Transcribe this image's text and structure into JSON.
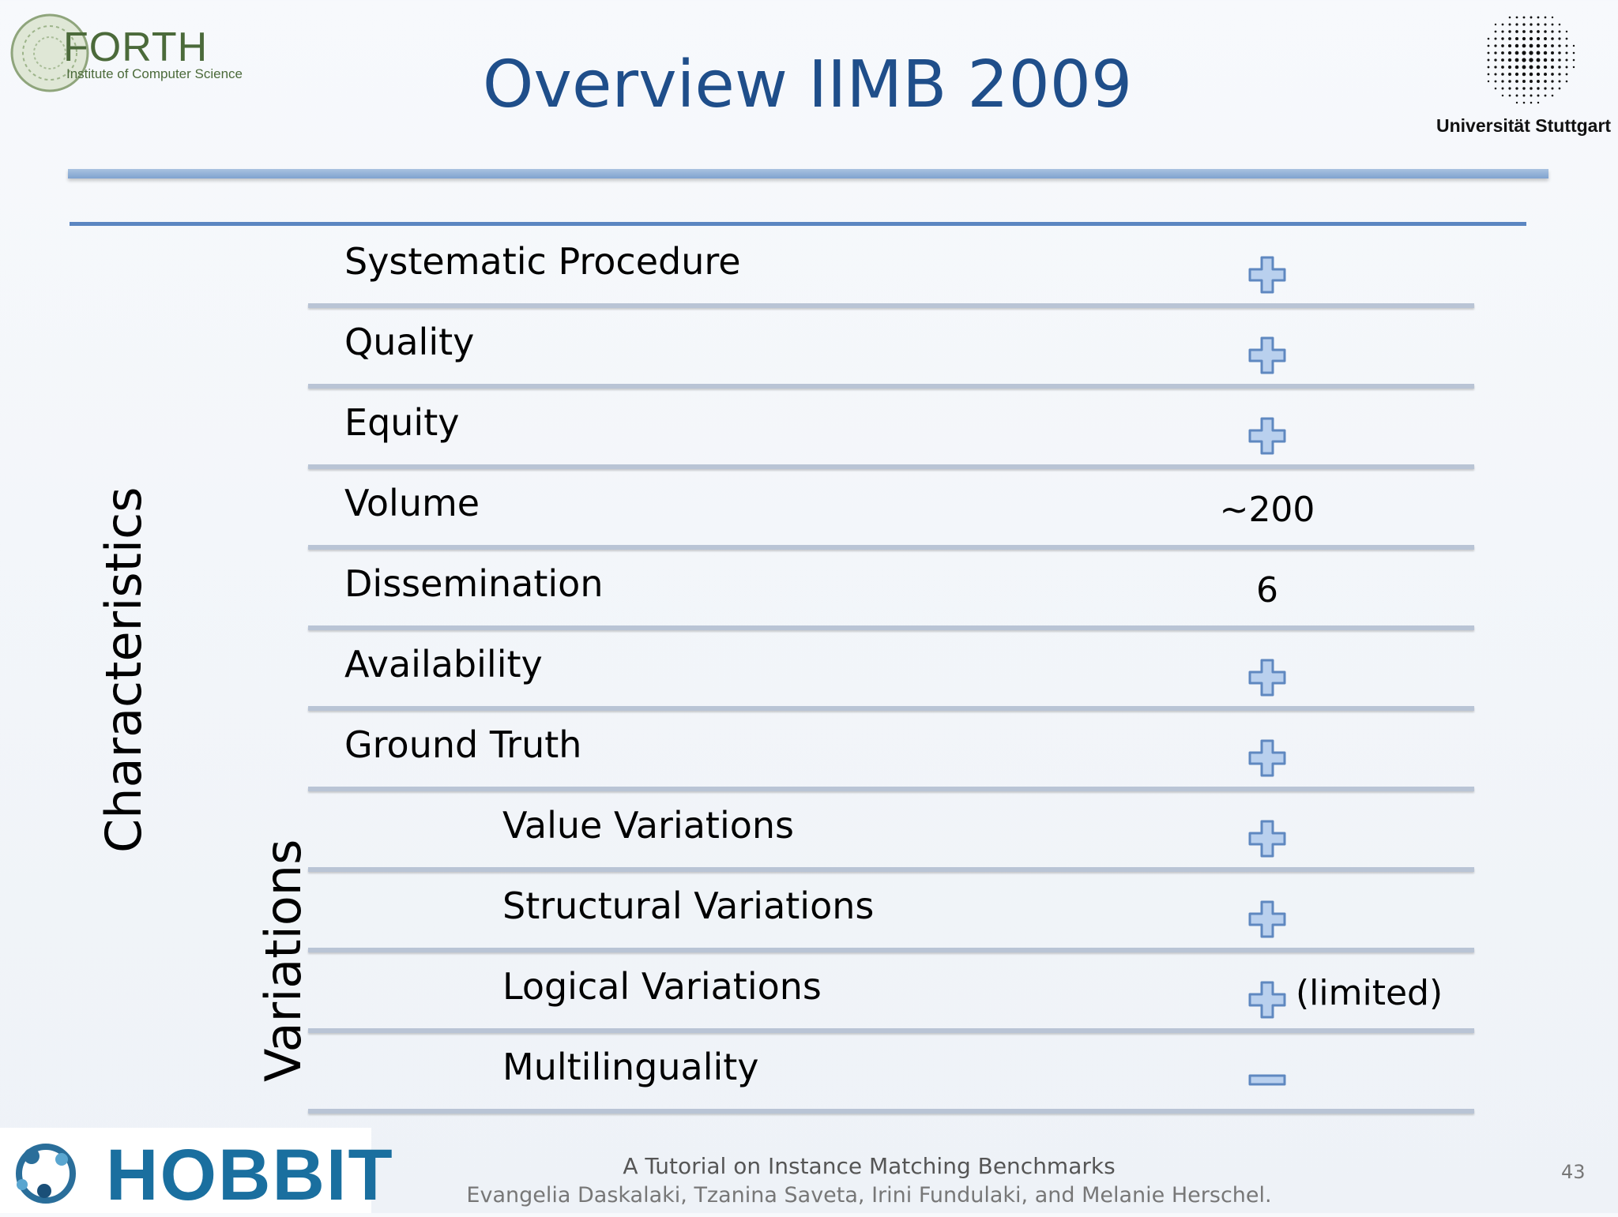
{
  "header": {
    "title": "Overview IIMB 2009",
    "left_logo": {
      "name": "FORTH",
      "subtitle": "Institute of Computer Science"
    },
    "right_logo": {
      "label": "Universität Stuttgart"
    }
  },
  "side_labels": {
    "characteristics": "Characteristics",
    "variations": "Variations"
  },
  "rows": [
    {
      "label": "Systematic Procedure",
      "icon": "plus-icon",
      "text": ""
    },
    {
      "label": "Quality",
      "icon": "plus-icon",
      "text": ""
    },
    {
      "label": "Equity",
      "icon": "plus-icon",
      "text": ""
    },
    {
      "label": "Volume",
      "icon": "",
      "text": "~200"
    },
    {
      "label": "Dissemination",
      "icon": "",
      "text": "6"
    },
    {
      "label": "Availability",
      "icon": "plus-icon",
      "text": ""
    },
    {
      "label": "Ground Truth",
      "icon": "plus-icon",
      "text": ""
    },
    {
      "label": "Value Variations",
      "icon": "plus-icon",
      "text": ""
    },
    {
      "label": "Structural Variations",
      "icon": "plus-icon",
      "text": ""
    },
    {
      "label": "Logical Variations",
      "icon": "plus-icon",
      "text": "(limited)"
    },
    {
      "label": "Multilinguality",
      "icon": "minus-icon",
      "text": ""
    }
  ],
  "footer": {
    "logo_text": "HOBBIT",
    "tutorial": "A Tutorial on Instance Matching Benchmarks",
    "authors": "Evangelia Daskalaki, Tzanina Saveta, Irini Fundulaki, and Melanie Herschel.",
    "page_number": "43"
  },
  "colors": {
    "title": "#1f4e8a",
    "icon_fill": "#b9d0ee",
    "icon_stroke": "#5f88c0",
    "separator": "#b9c4d5"
  }
}
